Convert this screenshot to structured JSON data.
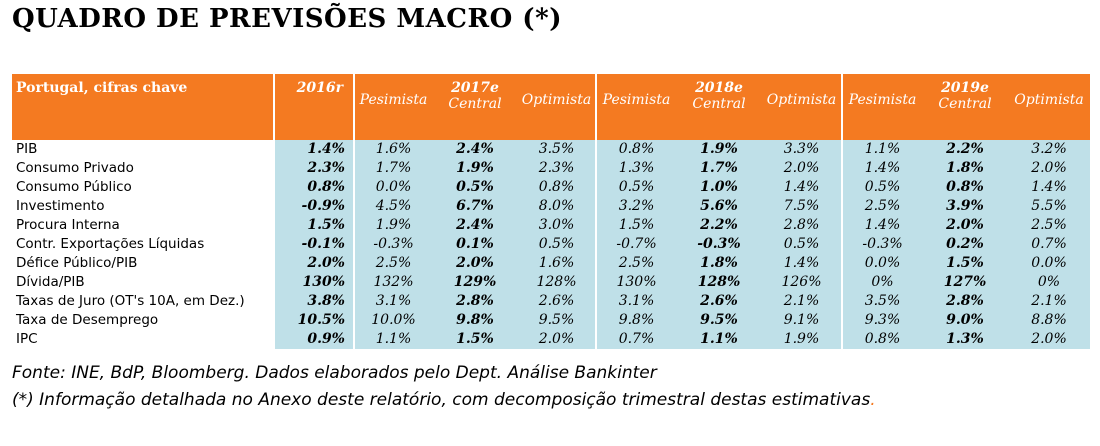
{
  "title": "QUADRO DE PREVISÕES MACRO (*)",
  "header": {
    "label": "Portugal, cifras chave",
    "y2016": "2016r",
    "groups": [
      {
        "year": "2017e",
        "left": "Pesimista",
        "central": "Central",
        "right": "Optimista"
      },
      {
        "year": "2018e",
        "left": "Pesimista",
        "central": "Central",
        "right": "Optimista"
      },
      {
        "year": "2019e",
        "left": "Pesimista",
        "central": "Central",
        "right": "Optimista"
      }
    ]
  },
  "rows": [
    {
      "label": "PIB",
      "v": [
        "1.4%",
        "1.6%",
        "2.4%",
        "3.5%",
        "0.8%",
        "1.9%",
        "3.3%",
        "1.1%",
        "2.2%",
        "3.2%"
      ]
    },
    {
      "label": "Consumo Privado",
      "v": [
        "2.3%",
        "1.7%",
        "1.9%",
        "2.3%",
        "1.3%",
        "1.7%",
        "2.0%",
        "1.4%",
        "1.8%",
        "2.0%"
      ]
    },
    {
      "label": "Consumo Público",
      "v": [
        "0.8%",
        "0.0%",
        "0.5%",
        "0.8%",
        "0.5%",
        "1.0%",
        "1.4%",
        "0.5%",
        "0.8%",
        "1.4%"
      ]
    },
    {
      "label": "Investimento",
      "v": [
        "-0.9%",
        "4.5%",
        "6.7%",
        "8.0%",
        "3.2%",
        "5.6%",
        "7.5%",
        "2.5%",
        "3.9%",
        "5.5%"
      ]
    },
    {
      "label": "Procura Interna",
      "v": [
        "1.5%",
        "1.9%",
        "2.4%",
        "3.0%",
        "1.5%",
        "2.2%",
        "2.8%",
        "1.4%",
        "2.0%",
        "2.5%"
      ]
    },
    {
      "label": "Contr. Exportações Líquidas",
      "v": [
        "-0.1%",
        "-0.3%",
        "0.1%",
        "0.5%",
        "-0.7%",
        "-0.3%",
        "0.5%",
        "-0.3%",
        "0.2%",
        "0.7%"
      ]
    },
    {
      "label": "Défice Público/PIB",
      "v": [
        "2.0%",
        "2.5%",
        "2.0%",
        "1.6%",
        "2.5%",
        "1.8%",
        "1.4%",
        "0.0%",
        "1.5%",
        "0.0%"
      ]
    },
    {
      "label": "Dívida/PIB",
      "v": [
        "130%",
        "132%",
        "129%",
        "128%",
        "130%",
        "128%",
        "126%",
        "0%",
        "127%",
        "0%"
      ]
    },
    {
      "label": "Taxas de Juro (OT's 10A, em Dez.)",
      "v": [
        "3.8%",
        "3.1%",
        "2.8%",
        "2.6%",
        "3.1%",
        "2.6%",
        "2.1%",
        "3.5%",
        "2.8%",
        "2.1%"
      ]
    },
    {
      "label": "Taxa de Desemprego",
      "v": [
        "10.5%",
        "10.0%",
        "9.8%",
        "9.5%",
        "9.8%",
        "9.5%",
        "9.1%",
        "9.3%",
        "9.0%",
        "8.8%"
      ]
    },
    {
      "label": "IPC",
      "v": [
        "0.9%",
        "1.1%",
        "1.5%",
        "2.0%",
        "0.7%",
        "1.1%",
        "1.9%",
        "0.8%",
        "1.3%",
        "2.0%"
      ]
    }
  ],
  "notes": {
    "source": "Fonte: INE, BdP, Bloomberg. Dados elaborados pelo Dept. Análise Bankinter",
    "footnote": "(*) Informação detalhada no Anexo deste relatório, com decomposição trimestral destas estimativas",
    "footnote_end": "."
  },
  "colors": {
    "header": "#f47a21",
    "cell": "#bfe0e8"
  }
}
